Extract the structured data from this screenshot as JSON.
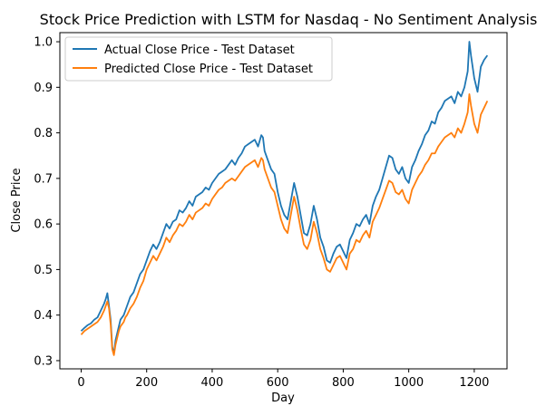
{
  "chart_data": {
    "type": "line",
    "title": "Stock Price Prediction with LSTM for Nasdaq - No Sentiment Analysis",
    "xlabel": "Day",
    "ylabel": "Close Price",
    "xlim": [
      -65,
      1300
    ],
    "ylim": [
      0.282,
      1.02
    ],
    "xticks": [
      0,
      200,
      400,
      600,
      800,
      1000,
      1200
    ],
    "yticks": [
      0.3,
      0.4,
      0.5,
      0.6,
      0.7,
      0.8,
      0.9,
      1.0
    ],
    "ytick_labels": [
      "0.3",
      "0.4",
      "0.5",
      "0.6",
      "0.7",
      "0.8",
      "0.9",
      "1.0"
    ],
    "grid": false,
    "legend_position": "top-left",
    "series": [
      {
        "name": "Actual Close Price - Test Dataset",
        "color": "#1f77b4",
        "x": [
          0,
          10,
          20,
          30,
          40,
          50,
          60,
          70,
          75,
          80,
          85,
          90,
          95,
          100,
          105,
          110,
          115,
          120,
          125,
          130,
          135,
          140,
          150,
          160,
          170,
          180,
          190,
          200,
          210,
          220,
          230,
          240,
          250,
          260,
          270,
          280,
          290,
          300,
          310,
          320,
          330,
          340,
          350,
          360,
          370,
          380,
          390,
          400,
          410,
          420,
          430,
          440,
          450,
          460,
          470,
          480,
          490,
          500,
          510,
          520,
          530,
          540,
          550,
          555,
          560,
          570,
          580,
          590,
          600,
          610,
          620,
          630,
          640,
          650,
          660,
          670,
          680,
          690,
          700,
          710,
          720,
          730,
          740,
          750,
          760,
          770,
          780,
          790,
          800,
          810,
          820,
          830,
          840,
          850,
          860,
          870,
          880,
          890,
          900,
          910,
          920,
          930,
          940,
          950,
          960,
          970,
          980,
          990,
          1000,
          1010,
          1020,
          1030,
          1040,
          1050,
          1060,
          1070,
          1080,
          1090,
          1100,
          1110,
          1120,
          1130,
          1140,
          1150,
          1160,
          1170,
          1180,
          1185,
          1190,
          1200,
          1210,
          1220,
          1230,
          1240
        ],
        "values": [
          0.365,
          0.372,
          0.378,
          0.382,
          0.39,
          0.395,
          0.41,
          0.425,
          0.435,
          0.448,
          0.42,
          0.39,
          0.33,
          0.315,
          0.345,
          0.36,
          0.375,
          0.39,
          0.395,
          0.4,
          0.41,
          0.42,
          0.44,
          0.45,
          0.47,
          0.49,
          0.5,
          0.52,
          0.54,
          0.555,
          0.545,
          0.56,
          0.58,
          0.6,
          0.59,
          0.605,
          0.61,
          0.63,
          0.625,
          0.635,
          0.65,
          0.64,
          0.66,
          0.665,
          0.67,
          0.68,
          0.675,
          0.69,
          0.7,
          0.71,
          0.715,
          0.72,
          0.73,
          0.74,
          0.73,
          0.745,
          0.755,
          0.77,
          0.775,
          0.78,
          0.785,
          0.77,
          0.795,
          0.79,
          0.76,
          0.74,
          0.72,
          0.71,
          0.67,
          0.64,
          0.62,
          0.61,
          0.65,
          0.69,
          0.66,
          0.62,
          0.58,
          0.575,
          0.6,
          0.64,
          0.61,
          0.57,
          0.55,
          0.52,
          0.515,
          0.535,
          0.55,
          0.555,
          0.54,
          0.525,
          0.565,
          0.58,
          0.6,
          0.595,
          0.61,
          0.62,
          0.6,
          0.64,
          0.66,
          0.675,
          0.7,
          0.725,
          0.75,
          0.745,
          0.72,
          0.71,
          0.725,
          0.7,
          0.69,
          0.725,
          0.74,
          0.76,
          0.775,
          0.795,
          0.805,
          0.825,
          0.82,
          0.845,
          0.855,
          0.87,
          0.875,
          0.88,
          0.865,
          0.89,
          0.88,
          0.9,
          0.935,
          1.0,
          0.97,
          0.92,
          0.89,
          0.945,
          0.96,
          0.97
        ]
      },
      {
        "name": "Predicted Close Price - Test Dataset",
        "color": "#ff7f0e",
        "x": [
          0,
          10,
          20,
          30,
          40,
          50,
          60,
          70,
          75,
          80,
          85,
          90,
          95,
          100,
          105,
          110,
          115,
          120,
          125,
          130,
          135,
          140,
          150,
          160,
          170,
          180,
          190,
          200,
          210,
          220,
          230,
          240,
          250,
          260,
          270,
          280,
          290,
          300,
          310,
          320,
          330,
          340,
          350,
          360,
          370,
          380,
          390,
          400,
          410,
          420,
          430,
          440,
          450,
          460,
          470,
          480,
          490,
          500,
          510,
          520,
          530,
          540,
          550,
          555,
          560,
          570,
          580,
          590,
          600,
          610,
          620,
          630,
          640,
          650,
          660,
          670,
          680,
          690,
          700,
          710,
          720,
          730,
          740,
          750,
          760,
          770,
          780,
          790,
          800,
          810,
          820,
          830,
          840,
          850,
          860,
          870,
          880,
          890,
          900,
          910,
          920,
          930,
          940,
          950,
          960,
          970,
          980,
          990,
          1000,
          1010,
          1020,
          1030,
          1040,
          1050,
          1060,
          1070,
          1080,
          1090,
          1100,
          1110,
          1120,
          1130,
          1140,
          1150,
          1160,
          1170,
          1180,
          1185,
          1190,
          1200,
          1210,
          1220,
          1230,
          1240
        ],
        "values": [
          0.357,
          0.365,
          0.37,
          0.375,
          0.38,
          0.385,
          0.395,
          0.41,
          0.42,
          0.43,
          0.415,
          0.38,
          0.325,
          0.312,
          0.335,
          0.35,
          0.365,
          0.375,
          0.38,
          0.385,
          0.395,
          0.4,
          0.415,
          0.425,
          0.44,
          0.46,
          0.475,
          0.5,
          0.515,
          0.53,
          0.52,
          0.535,
          0.55,
          0.57,
          0.56,
          0.575,
          0.585,
          0.6,
          0.595,
          0.605,
          0.62,
          0.61,
          0.625,
          0.63,
          0.635,
          0.645,
          0.64,
          0.655,
          0.665,
          0.675,
          0.68,
          0.69,
          0.695,
          0.7,
          0.695,
          0.705,
          0.715,
          0.725,
          0.73,
          0.735,
          0.74,
          0.725,
          0.745,
          0.74,
          0.72,
          0.7,
          0.68,
          0.67,
          0.64,
          0.61,
          0.59,
          0.58,
          0.62,
          0.66,
          0.63,
          0.59,
          0.555,
          0.545,
          0.565,
          0.605,
          0.58,
          0.545,
          0.525,
          0.5,
          0.495,
          0.51,
          0.525,
          0.53,
          0.515,
          0.5,
          0.535,
          0.545,
          0.565,
          0.56,
          0.575,
          0.585,
          0.57,
          0.605,
          0.62,
          0.635,
          0.655,
          0.675,
          0.695,
          0.69,
          0.67,
          0.665,
          0.675,
          0.655,
          0.645,
          0.675,
          0.69,
          0.705,
          0.715,
          0.73,
          0.74,
          0.755,
          0.755,
          0.77,
          0.78,
          0.79,
          0.795,
          0.8,
          0.79,
          0.81,
          0.8,
          0.82,
          0.845,
          0.885,
          0.86,
          0.82,
          0.8,
          0.84,
          0.855,
          0.87
        ]
      }
    ]
  }
}
